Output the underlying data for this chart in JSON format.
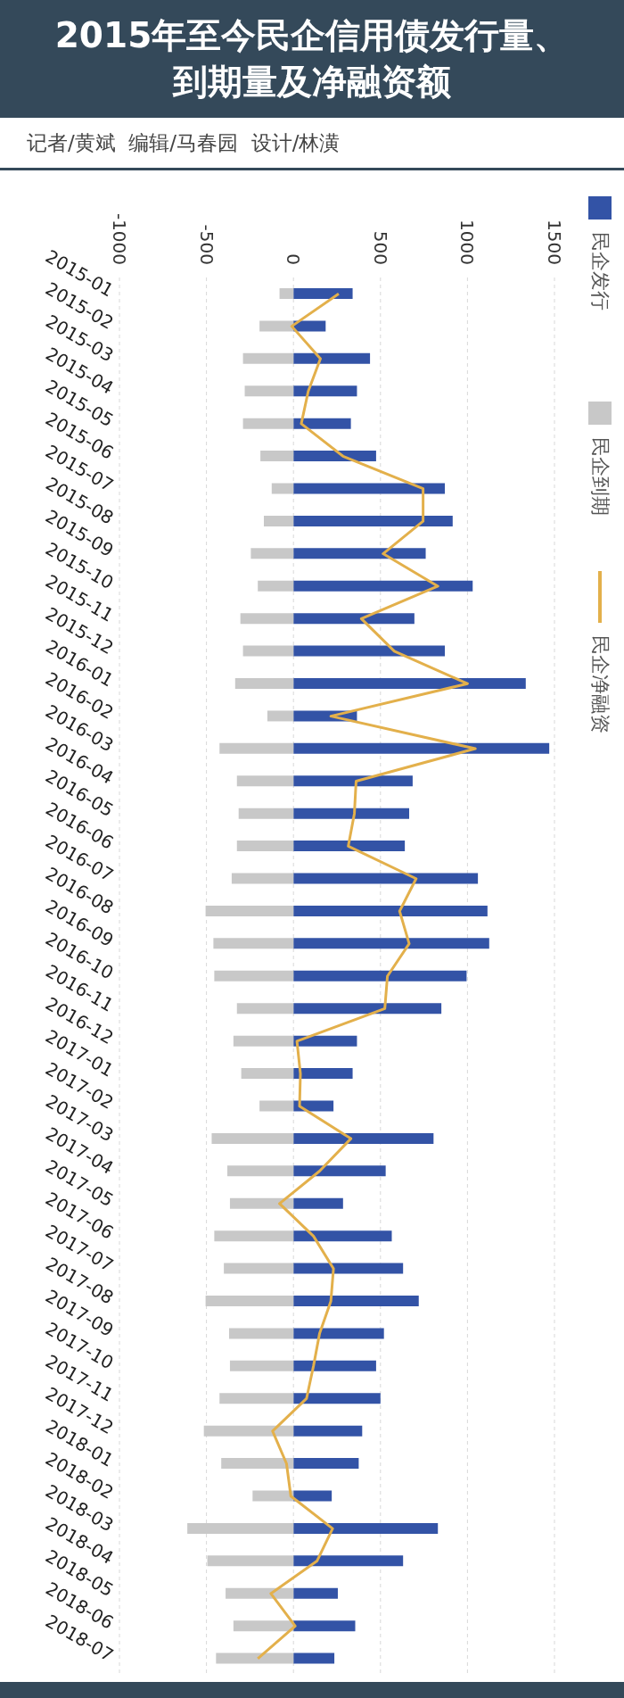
{
  "chart_data": {
    "type": "bar",
    "orientation": "horizontal",
    "stacked": true,
    "title": "2015年至今民企信用债发行量、到期量及净融资额",
    "subtitle": "记者/黄斌  编辑/马春园  设计/林潢",
    "categories": [
      "2015-01",
      "2015-02",
      "2015-03",
      "2015-04",
      "2015-05",
      "2015-06",
      "2015-07",
      "2015-08",
      "2015-09",
      "2015-10",
      "2015-11",
      "2015-12",
      "2016-01",
      "2016-02",
      "2016-03",
      "2016-04",
      "2016-05",
      "2016-06",
      "2016-07",
      "2016-08",
      "2016-09",
      "2016-10",
      "2016-11",
      "2016-12",
      "2017-01",
      "2017-02",
      "2017-03",
      "2017-04",
      "2017-05",
      "2017-06",
      "2017-07",
      "2017-08",
      "2017-09",
      "2017-10",
      "2017-11",
      "2017-12",
      "2018-01",
      "2018-02",
      "2018-03",
      "2018-04",
      "2018-05",
      "2018-06",
      "2018-07"
    ],
    "series": [
      {
        "name": "民企发行",
        "color": "#3353a6",
        "values": [
          340,
          185,
          440,
          365,
          330,
          475,
          870,
          915,
          760,
          1030,
          695,
          870,
          1335,
          365,
          1470,
          685,
          665,
          640,
          1060,
          1115,
          1125,
          995,
          850,
          365,
          340,
          230,
          805,
          530,
          285,
          565,
          630,
          720,
          520,
          475,
          500,
          395,
          375,
          220,
          830,
          630,
          255,
          355,
          235
        ]
      },
      {
        "name": "民企到期",
        "color": "#c8c8c8",
        "values": [
          -80,
          -195,
          -290,
          -280,
          -290,
          -190,
          -125,
          -170,
          -245,
          -205,
          -305,
          -290,
          -335,
          -150,
          -425,
          -325,
          -315,
          -325,
          -355,
          -505,
          -460,
          -455,
          -325,
          -345,
          -300,
          -195,
          -470,
          -380,
          -365,
          -455,
          -400,
          -505,
          -370,
          -365,
          -425,
          -515,
          -415,
          -235,
          -610,
          -495,
          -390,
          -345,
          -445
        ]
      },
      {
        "name": "民企净融资",
        "type": "line",
        "color": "#e3b04b",
        "values": [
          260,
          -10,
          155,
          85,
          45,
          285,
          745,
          745,
          515,
          830,
          390,
          580,
          1000,
          215,
          1045,
          360,
          350,
          315,
          705,
          610,
          665,
          540,
          525,
          20,
          40,
          35,
          330,
          150,
          -80,
          115,
          230,
          215,
          150,
          115,
          75,
          -120,
          -40,
          -15,
          225,
          135,
          -130,
          10,
          -205
        ]
      }
    ],
    "xlim": [
      -1000,
      1500
    ],
    "xticks": [
      -1000,
      -500,
      0,
      500,
      1000,
      1500
    ],
    "grid": "x",
    "legend": "right",
    "marker": "none",
    "line_style": "solid"
  }
}
